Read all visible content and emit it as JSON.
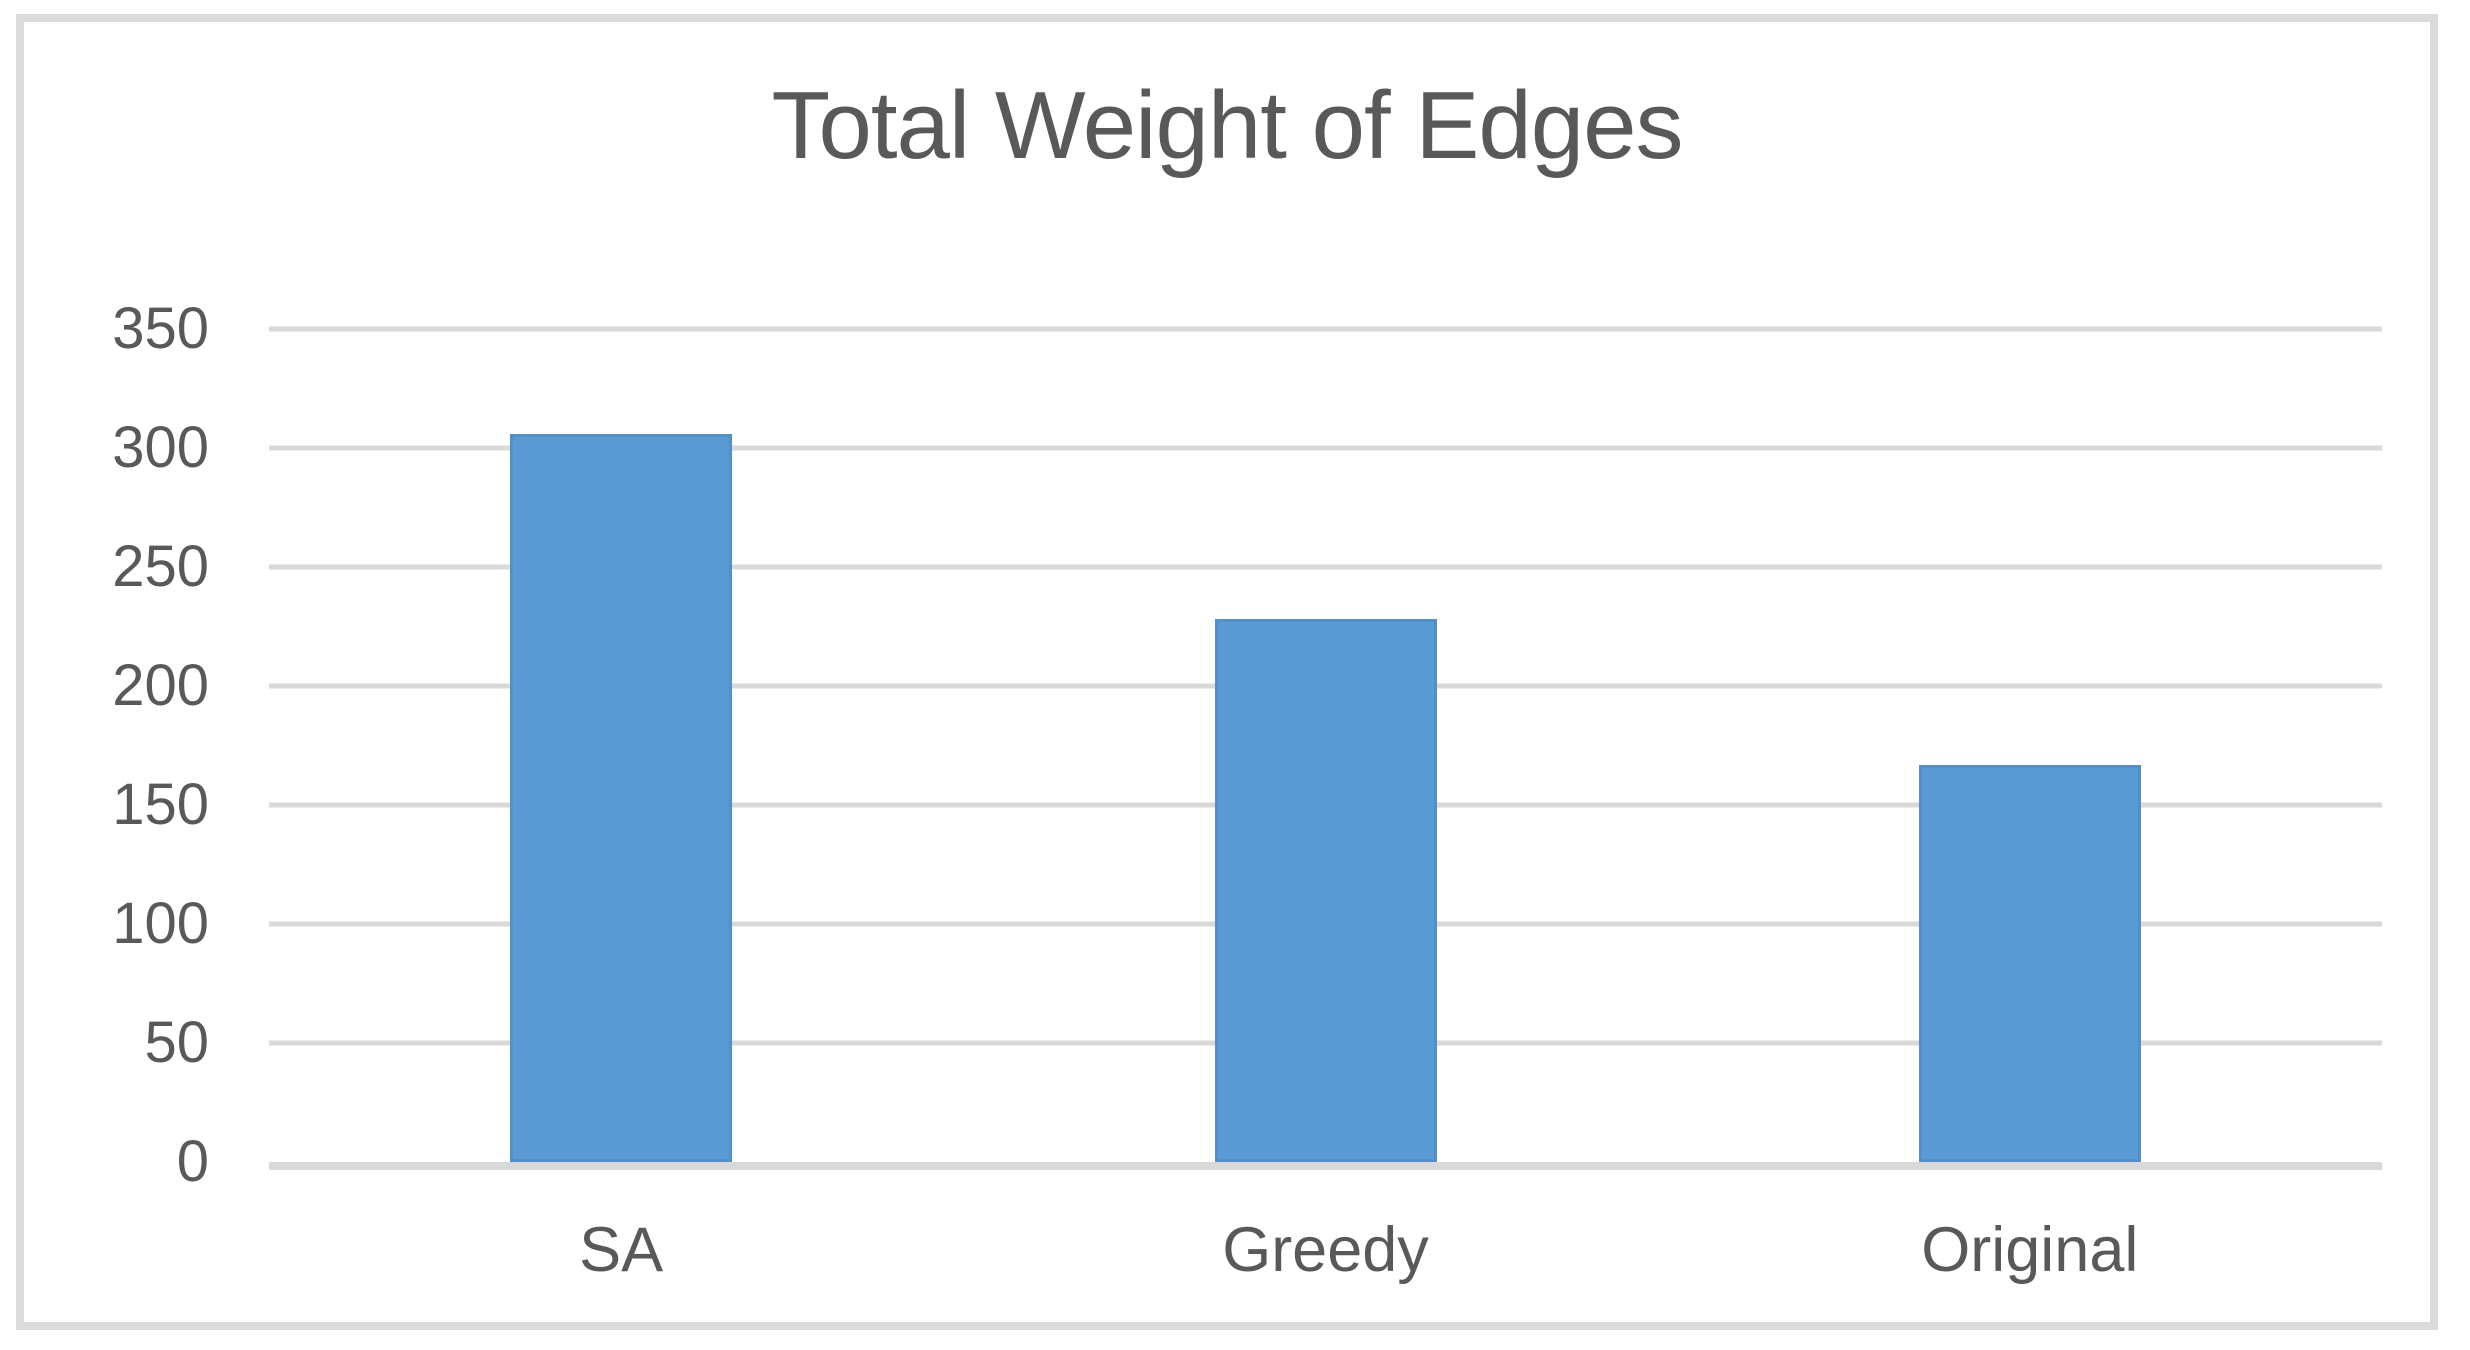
{
  "chart_data": {
    "type": "bar",
    "title": "Total Weight of Edges",
    "categories": [
      "SA",
      "Greedy",
      "Original"
    ],
    "values": [
      306,
      228,
      167
    ],
    "xlabel": "",
    "ylabel": "",
    "ylim": [
      0,
      350
    ],
    "ytick_step": 50,
    "yticks": [
      0,
      50,
      100,
      150,
      200,
      250,
      300,
      350
    ],
    "grid": true,
    "legend": false,
    "colors": {
      "bar": "#5B9BD5",
      "gridline": "#D9D9D9",
      "frame_border": "#DBDBDB",
      "text": "#595959",
      "background": "#FFFFFF"
    }
  }
}
